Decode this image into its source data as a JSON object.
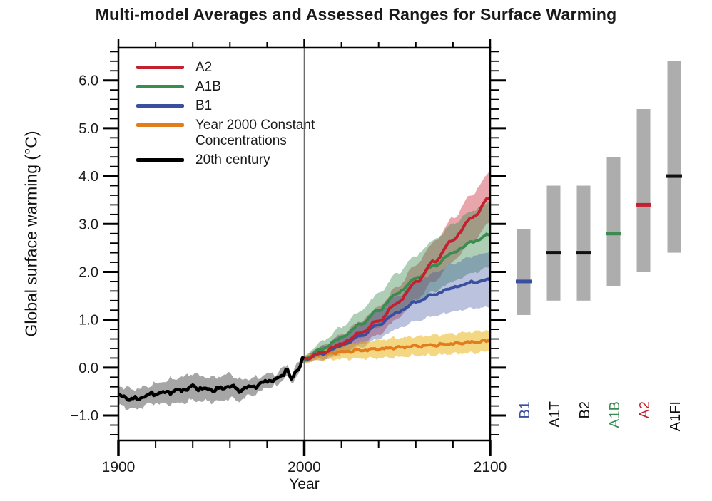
{
  "title": "Multi-model Averages and Assessed Ranges for Surface Warming",
  "colors": {
    "a2": "#C42130",
    "a1b": "#3C8C51",
    "b1": "#3A4FA0",
    "constant": "#E27D1E",
    "century20": "#000000",
    "bar_gray": "#ADADAD",
    "frame": "#000000",
    "reference_line": "#6B6B6B",
    "text": "#1a1a1a"
  },
  "legend": {
    "items": [
      {
        "id": "a2",
        "label": "A2",
        "color": "#C42130"
      },
      {
        "id": "a1b",
        "label": "A1B",
        "color": "#3C8C51"
      },
      {
        "id": "b1",
        "label": "B1",
        "color": "#3A4FA0"
      },
      {
        "id": "constant",
        "label": "Year 2000 Constant",
        "label2": "Concentrations",
        "color": "#E27D1E"
      },
      {
        "id": "century20",
        "label": "20th century",
        "color": "#000000"
      }
    ]
  },
  "chart_data": {
    "type": "line",
    "title": "Multi-model Averages and Assessed Ranges for Surface Warming",
    "xlabel": "Year",
    "ylabel": "Global surface warming (°C)",
    "xlim": [
      1900,
      2100
    ],
    "ylim": [
      -1.52,
      6.68
    ],
    "x_ticks": [
      1900,
      2000,
      2100
    ],
    "x_tick_labels": [
      "1900",
      "2000",
      "2100"
    ],
    "x_minor_step": 20,
    "y_ticks": [
      -1,
      0,
      1,
      2,
      3,
      4,
      5,
      6
    ],
    "y_tick_labels": [
      "−1.0",
      "0.0",
      "1.0",
      "2.0",
      "3.0",
      "4.0",
      "5.0",
      "6.0"
    ],
    "y_minor_step": 0.2,
    "grid": false,
    "reference_line_x": 2000,
    "series": [
      {
        "name": "20th century",
        "color": "#000000",
        "line_width": 4.5,
        "band_color": "rgba(0,0,0,0.35)",
        "x": [
          1900,
          1905,
          1910,
          1915,
          1920,
          1925,
          1930,
          1935,
          1940,
          1945,
          1950,
          1955,
          1960,
          1965,
          1970,
          1975,
          1980,
          1985,
          1988,
          1991,
          1993,
          1996,
          2000
        ],
        "y": [
          -0.58,
          -0.64,
          -0.66,
          -0.58,
          -0.54,
          -0.52,
          -0.49,
          -0.46,
          -0.4,
          -0.44,
          -0.46,
          -0.44,
          -0.38,
          -0.47,
          -0.41,
          -0.37,
          -0.27,
          -0.26,
          -0.14,
          -0.05,
          -0.26,
          -0.04,
          0.18
        ],
        "band_halfwidth": [
          0.2,
          0.21,
          0.21,
          0.19,
          0.2,
          0.24,
          0.26,
          0.27,
          0.28,
          0.26,
          0.25,
          0.26,
          0.26,
          0.22,
          0.18,
          0.16,
          0.14,
          0.13,
          0.12,
          0.11,
          0.11,
          0.1,
          0.09
        ],
        "noise_amp": 0.05,
        "seed": 1
      },
      {
        "name": "A2",
        "color": "#C42130",
        "line_width": 4,
        "band_color": "rgba(197,33,48,0.40)",
        "x": [
          2000,
          2010,
          2020,
          2030,
          2040,
          2050,
          2060,
          2070,
          2080,
          2090,
          2100
        ],
        "y": [
          0.18,
          0.32,
          0.5,
          0.72,
          0.98,
          1.35,
          1.78,
          2.22,
          2.67,
          3.12,
          3.55
        ],
        "band_halfwidth": [
          0.06,
          0.14,
          0.19,
          0.24,
          0.29,
          0.33,
          0.37,
          0.41,
          0.45,
          0.49,
          0.53
        ],
        "noise_amp": 0.025,
        "seed": 2
      },
      {
        "name": "A1B",
        "color": "#3C8C51",
        "line_width": 4,
        "band_color": "rgba(61,140,81,0.42)",
        "x": [
          2000,
          2010,
          2020,
          2030,
          2040,
          2050,
          2060,
          2070,
          2080,
          2090,
          2100
        ],
        "y": [
          0.18,
          0.4,
          0.63,
          0.9,
          1.2,
          1.55,
          1.86,
          2.13,
          2.4,
          2.62,
          2.78
        ],
        "band_halfwidth": [
          0.06,
          0.16,
          0.22,
          0.28,
          0.35,
          0.42,
          0.48,
          0.54,
          0.6,
          0.65,
          0.68
        ],
        "noise_amp": 0.022,
        "seed": 3
      },
      {
        "name": "B1",
        "color": "#3A4FA0",
        "line_width": 4,
        "band_color": "rgba(58,79,160,0.35)",
        "x": [
          2000,
          2010,
          2020,
          2030,
          2040,
          2050,
          2060,
          2070,
          2080,
          2090,
          2100
        ],
        "y": [
          0.18,
          0.3,
          0.46,
          0.66,
          0.9,
          1.15,
          1.37,
          1.53,
          1.67,
          1.78,
          1.84
        ],
        "band_halfwidth": [
          0.06,
          0.14,
          0.19,
          0.24,
          0.29,
          0.34,
          0.4,
          0.45,
          0.5,
          0.54,
          0.58
        ],
        "noise_amp": 0.022,
        "seed": 4
      },
      {
        "name": "Year 2000 Constant Concentrations",
        "color": "#E27D1E",
        "line_width": 4,
        "band_color": "rgba(233,183,28,0.55)",
        "x": [
          2000,
          2010,
          2020,
          2030,
          2040,
          2050,
          2060,
          2070,
          2080,
          2090,
          2100
        ],
        "y": [
          0.18,
          0.28,
          0.33,
          0.36,
          0.39,
          0.42,
          0.45,
          0.47,
          0.5,
          0.53,
          0.56
        ],
        "band_halfwidth": [
          0.06,
          0.12,
          0.15,
          0.17,
          0.19,
          0.2,
          0.2,
          0.21,
          0.21,
          0.22,
          0.22
        ],
        "noise_amp": 0.03,
        "seed": 5
      }
    ],
    "assessed_ranges": [
      {
        "label": "B1",
        "min": 1.1,
        "max": 2.9,
        "best": 1.8,
        "color": "#3A4FA0"
      },
      {
        "label": "A1T",
        "min": 1.4,
        "max": 3.8,
        "best": 2.4,
        "color": "#111111"
      },
      {
        "label": "B2",
        "min": 1.4,
        "max": 3.8,
        "best": 2.4,
        "color": "#111111"
      },
      {
        "label": "A1B",
        "min": 1.7,
        "max": 4.4,
        "best": 2.8,
        "color": "#3C8C51"
      },
      {
        "label": "A2",
        "min": 2.0,
        "max": 5.4,
        "best": 3.4,
        "color": "#C42130"
      },
      {
        "label": "A1FI",
        "min": 2.4,
        "max": 6.4,
        "best": 4.0,
        "color": "#111111"
      }
    ]
  }
}
